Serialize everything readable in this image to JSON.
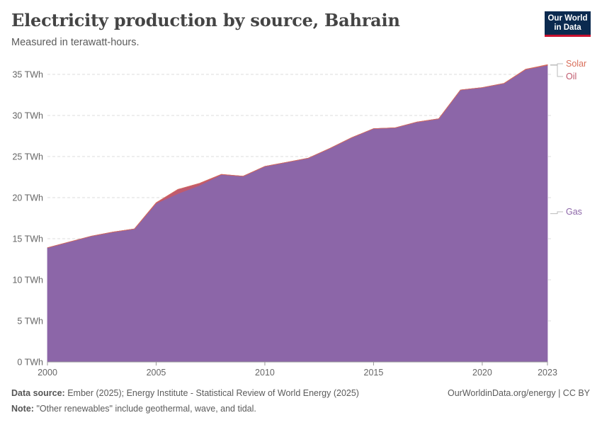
{
  "header": {
    "title": "Electricity production by source, Bahrain",
    "subtitle": "Measured in terawatt-hours.",
    "logo_line1": "Our World",
    "logo_line2": "in Data"
  },
  "footer": {
    "source_label": "Data source:",
    "source_text": "Ember (2025); Energy Institute - Statistical Review of World Energy (2025)",
    "credit": "OurWorldinData.org/energy | CC BY",
    "note_label": "Note:",
    "note_text": "\"Other renewables\" include geothermal, wave, and tidal."
  },
  "chart_data": {
    "type": "area",
    "stacked": true,
    "title": "Electricity production by source, Bahrain",
    "subtitle": "Measured in terawatt-hours.",
    "xlabel": "",
    "ylabel": "",
    "unit": "TWh",
    "xlim": [
      2000,
      2023
    ],
    "ylim": [
      0,
      36
    ],
    "x_ticks": [
      "2000",
      "2005",
      "2010",
      "2015",
      "2020",
      "2023"
    ],
    "y_ticks": [
      "0 TWh",
      "5 TWh",
      "10 TWh",
      "15 TWh",
      "20 TWh",
      "25 TWh",
      "30 TWh",
      "35 TWh"
    ],
    "grid": "horizontal dashed",
    "legend": "right, inline labels",
    "x": [
      2000,
      2001,
      2002,
      2003,
      2004,
      2005,
      2006,
      2007,
      2008,
      2009,
      2010,
      2011,
      2012,
      2013,
      2014,
      2015,
      2016,
      2017,
      2018,
      2019,
      2020,
      2021,
      2022,
      2023
    ],
    "series": [
      {
        "name": "Gas",
        "color": "#8c66a8",
        "values": [
          13.9,
          14.6,
          15.3,
          15.8,
          16.2,
          19.3,
          20.5,
          21.5,
          22.8,
          22.6,
          23.8,
          24.3,
          24.8,
          26.0,
          27.3,
          28.4,
          28.5,
          29.2,
          29.6,
          33.1,
          33.4,
          33.9,
          35.6,
          36.1
        ]
      },
      {
        "name": "Oil",
        "color": "#c05a6e",
        "values": [
          0,
          0,
          0,
          0,
          0,
          0.08,
          0.5,
          0.25,
          0.04,
          0,
          0,
          0,
          0,
          0,
          0,
          0,
          0,
          0,
          0,
          0,
          0,
          0,
          0.02,
          0.04
        ]
      },
      {
        "name": "Solar",
        "color": "#d96f5b",
        "values": [
          0,
          0,
          0,
          0,
          0,
          0,
          0,
          0,
          0,
          0,
          0,
          0,
          0,
          0,
          0,
          0,
          0,
          0,
          0,
          0,
          0,
          0.01,
          0.02,
          0.04
        ]
      }
    ]
  }
}
